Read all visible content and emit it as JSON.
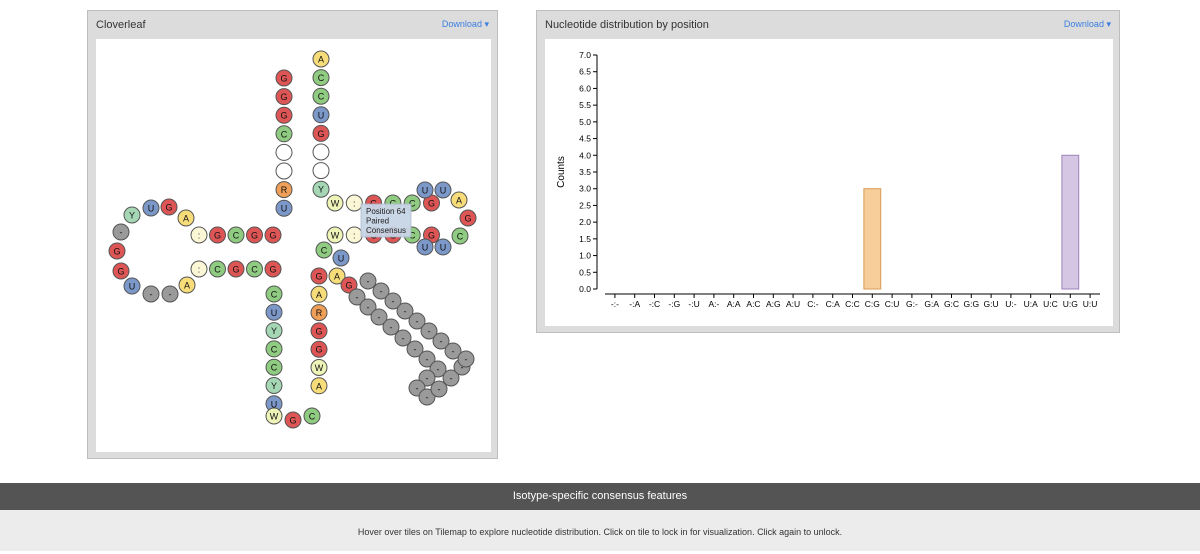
{
  "cloverleaf": {
    "title": "Cloverleaf",
    "download_label": "Download",
    "tooltip": [
      "Position 64",
      "Paired",
      "Consensus"
    ],
    "colors": {
      "A": "#f7dc7a",
      "C": "#8fcb80",
      "G": "#dd5555",
      "U": "#7b98c9",
      "Y": "#a5d7b4",
      "R": "#ef9f58",
      "W": "#eef3b8",
      ":": "#fbf7d6",
      "-": "#9a9a9a",
      "": "#ffffff"
    },
    "acceptor_5": [
      "G",
      "G",
      "G",
      "C",
      "",
      "",
      "R",
      "U"
    ],
    "acceptor_3": [
      "A",
      "C",
      "C",
      "U",
      "G",
      "",
      "",
      "Y"
    ],
    "d_stem_top": [
      ":",
      "G",
      "C",
      "G",
      "G"
    ],
    "d_stem_bottom": [
      ":",
      "C",
      "G",
      "C",
      "G"
    ],
    "d_loop": [
      "A",
      "G",
      "U",
      "Y",
      "-",
      "G",
      "G",
      "U",
      "-",
      "-",
      "A"
    ],
    "anticodon_5": [
      "C",
      "U",
      "Y",
      "C",
      "C",
      "Y",
      "U"
    ],
    "anticodon_3": [
      "G",
      "A",
      "R",
      "G",
      "G",
      "W",
      "A"
    ],
    "anticodon_loop": [
      "W",
      "G",
      "C"
    ],
    "variable_loop": [
      "A",
      "G",
      "-",
      "-",
      "-",
      "-",
      "-",
      "-",
      "-",
      "-",
      "-",
      "-",
      "-",
      "-",
      "-",
      "-",
      "-",
      "-",
      "-",
      "-",
      "-",
      "-",
      "-",
      "-",
      "-"
    ],
    "t_stem_top": [
      "W",
      ":",
      "G",
      "C",
      "C",
      "G"
    ],
    "t_stem_bottom": [
      "W",
      ":",
      "G",
      "G",
      "C",
      "G"
    ],
    "t_loop": [
      "U",
      "U",
      "A",
      "G",
      "C",
      "U",
      "U"
    ],
    "connector": [
      "C",
      "U"
    ]
  },
  "distribution": {
    "title": "Nucleotide distribution by position",
    "download_label": "Download"
  },
  "chart_data": {
    "type": "bar",
    "title": "",
    "xlabel": "",
    "ylabel": "Counts",
    "ylim": [
      0,
      7.0
    ],
    "yticks": [
      "0.0",
      "0.5",
      "1.0",
      "1.5",
      "2.0",
      "2.5",
      "3.0",
      "3.5",
      "4.0",
      "4.5",
      "5.0",
      "5.5",
      "6.0",
      "6.5",
      "7.0"
    ],
    "categories": [
      "-:-",
      "-:A",
      "-:C",
      "-:G",
      "-:U",
      "A:-",
      "A:A",
      "A:C",
      "A:G",
      "A:U",
      "C:-",
      "C:A",
      "C:C",
      "C:G",
      "C:U",
      "G:-",
      "G:A",
      "G:C",
      "G:G",
      "G:U",
      "U:-",
      "U:A",
      "U:C",
      "U:G",
      "U:U"
    ],
    "values": [
      0,
      0,
      0,
      0,
      0,
      0,
      0,
      0,
      0,
      0,
      0,
      0,
      0,
      3,
      0,
      0,
      0,
      0,
      0,
      0,
      0,
      0,
      0,
      4,
      0
    ],
    "colors": {
      "C:G": {
        "fill": "#f7cd9a",
        "stroke": "#d99a55"
      },
      "U:G": {
        "fill": "#d5c6e3",
        "stroke": "#9b83bb"
      }
    },
    "grid": false
  },
  "footer": {
    "section_title": "Isotype-specific consensus features",
    "help_text": "Hover over tiles on Tilemap to explore nucleotide distribution. Click on tile to lock in for visualization. Click again to unlock."
  }
}
